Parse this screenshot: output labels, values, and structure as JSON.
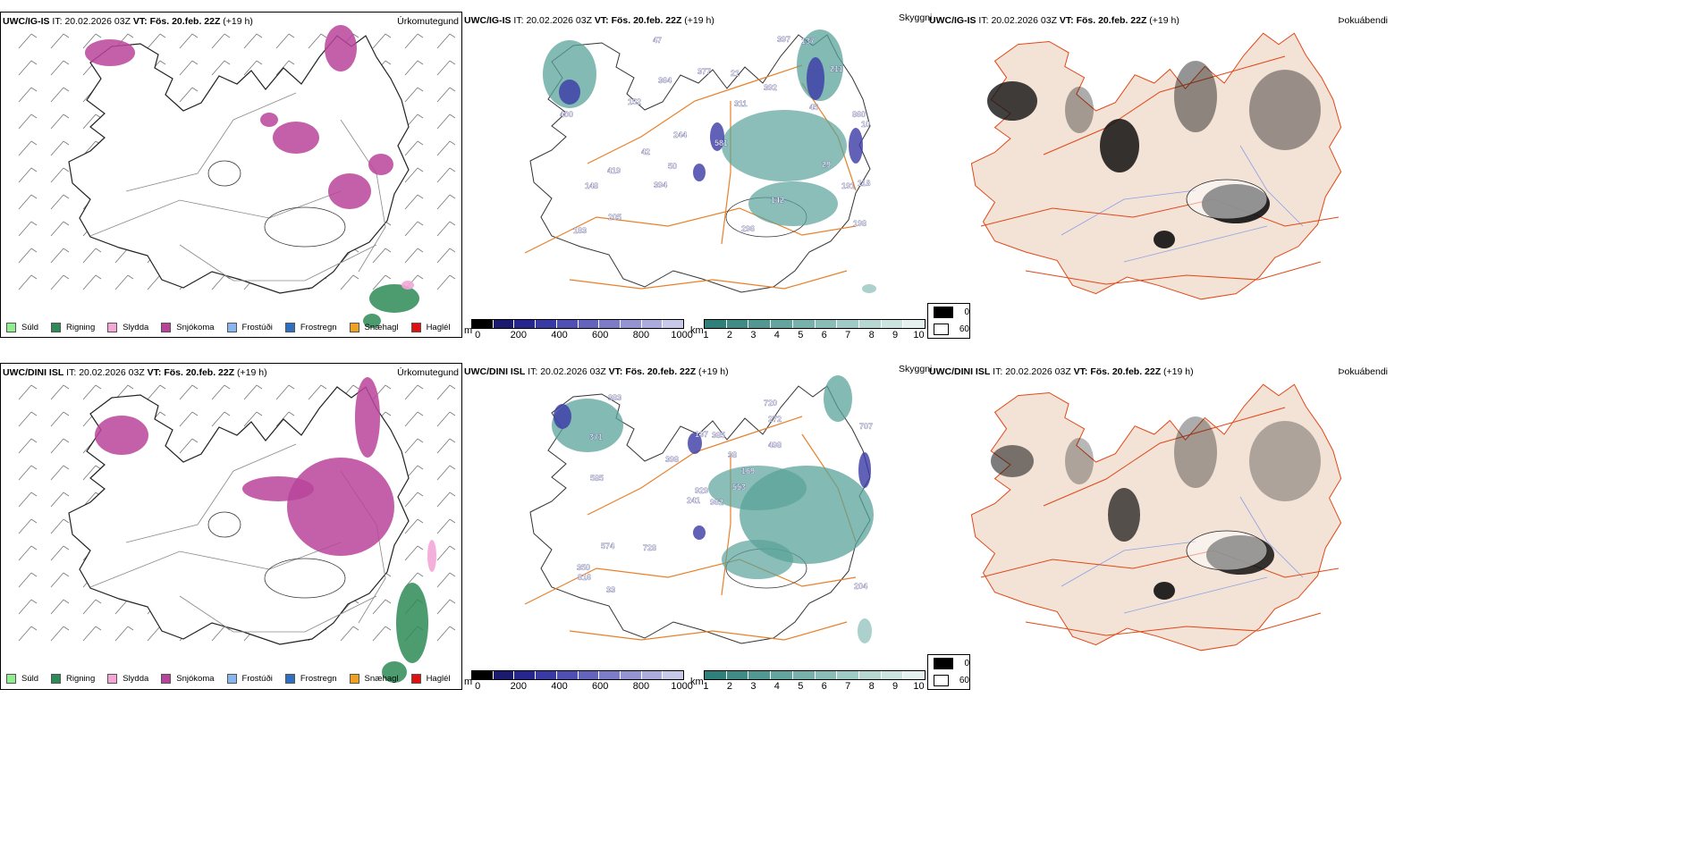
{
  "rows": [
    {
      "model": "UWC/IG-IS",
      "it_label": "IT:",
      "it_value": "20.02.2026 03Z",
      "vt_label": "VT:",
      "vt_value": "Fös. 20.feb. 22Z",
      "lead": "(+19 h)",
      "precip_label": "Úrkomutegund",
      "vis_label": "Skyggni",
      "cloud_label": "Þokuábendi",
      "vis_numbers": [
        "364",
        "860",
        "392",
        "10",
        "244",
        "118",
        "50",
        "397",
        "191",
        "211",
        "152",
        "29",
        "45",
        "394",
        "148",
        "581",
        "42",
        "400",
        "47",
        "377",
        "198",
        "21",
        "205",
        "419",
        "311",
        "137",
        "183",
        "142",
        "296"
      ]
    },
    {
      "model": "UWC/DINI ISL",
      "it_label": "IT:",
      "it_value": "20.02.2026 03Z",
      "vt_label": "VT:",
      "vt_value": "Fös. 20.feb. 22Z",
      "lead": "(+19 h)",
      "precip_label": "Úrkomutegund",
      "vis_label": "Skyggni",
      "cloud_label": "Þokuábendi",
      "vis_numbers": [
        "962",
        "371",
        "929",
        "350",
        "169",
        "728",
        "720",
        "385",
        "272",
        "553",
        "383",
        "204",
        "585",
        "707",
        "241",
        "498",
        "33",
        "137",
        "38",
        "574",
        "398",
        "816"
      ]
    }
  ],
  "precip_legend": [
    {
      "label": "Súld",
      "color": "#90ee90"
    },
    {
      "label": "Rigning",
      "color": "#2e8b57"
    },
    {
      "label": "Slydda",
      "color": "#f4a6d7"
    },
    {
      "label": "Snjókoma",
      "color": "#b8449a"
    },
    {
      "label": "Frostúði",
      "color": "#87b7ee"
    },
    {
      "label": "Frostregn",
      "color": "#2f6fbf"
    },
    {
      "label": "Snæhagl",
      "color": "#f0a020"
    },
    {
      "label": "Haglél",
      "color": "#e01010"
    }
  ],
  "ceiling_scale": {
    "unit": "m",
    "ticks": [
      "0",
      "200",
      "400",
      "600",
      "800",
      "1000"
    ],
    "colors": [
      "#000000",
      "#1a1a6e",
      "#26268e",
      "#3a3aa6",
      "#5050b4",
      "#6464be",
      "#7c7cc8",
      "#9494d2",
      "#acacdc",
      "#c8c8e8"
    ]
  },
  "vis_scale": {
    "unit": "km",
    "ticks": [
      "1",
      "2",
      "3",
      "4",
      "5",
      "6",
      "7",
      "8",
      "9",
      "10"
    ],
    "colors": [
      "#2f7f7a",
      "#3f8c86",
      "#519892",
      "#63a49e",
      "#77b1ab",
      "#8bbdb8",
      "#a0cac5",
      "#b6d7d2",
      "#cce4e0",
      "#e4f1ef"
    ]
  },
  "cloud_legend": [
    {
      "label": "0",
      "color": "#000000"
    },
    {
      "label": "60",
      "color": "#ffffff"
    }
  ],
  "colors": {
    "snow": "#b8449a",
    "rain": "#2e8b57",
    "sleet": "#f4a6d7",
    "ceiling": "#3a3aa6",
    "visibility": "#5aa39a",
    "roads_mid": "#e8802a",
    "roads_right": "#e04818",
    "land_right": "#f3e2d6",
    "rivers": "#8aa0e6"
  }
}
